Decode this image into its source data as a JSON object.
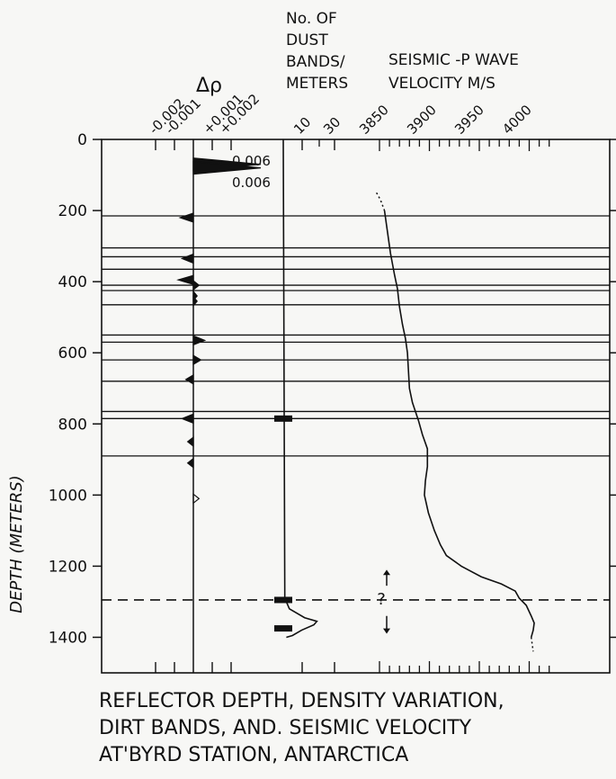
{
  "chart_data": {
    "type": "line",
    "title": [
      "REFLECTOR DEPTH, DENSITY VARIATION,",
      "DIRT BANDS, AND. SEISMIC VELOCITY",
      "AT'BYRD STATION, ANTARCTICA"
    ],
    "ylabel": "DEPTH (METERS)",
    "y_ticks": [
      "0",
      "200",
      "400",
      "600",
      "800",
      "1000",
      "1200",
      "1400"
    ],
    "ylim": [
      0,
      1500
    ],
    "panels": {
      "density": {
        "label": "Δρ",
        "ticks": [
          "-0.002",
          "-0.001",
          "+0.001",
          "+0.002"
        ],
        "annotations": [
          "0.006",
          "0.006"
        ],
        "spikes": [
          {
            "depth": 70,
            "value": 0.006
          },
          {
            "depth": 80,
            "value": 0.006
          },
          {
            "depth": 220,
            "value": -0.0007
          },
          {
            "depth": 335,
            "value": -0.0006
          },
          {
            "depth": 395,
            "value": -0.0008
          },
          {
            "depth": 410,
            "value": 0.0003
          },
          {
            "depth": 440,
            "value": 0.0002
          },
          {
            "depth": 455,
            "value": 0.0002
          },
          {
            "depth": 565,
            "value": 0.0006
          },
          {
            "depth": 620,
            "value": 0.0004
          },
          {
            "depth": 675,
            "value": -0.0004
          },
          {
            "depth": 785,
            "value": -0.0006
          },
          {
            "depth": 850,
            "value": -0.0003
          },
          {
            "depth": 910,
            "value": -0.0003
          },
          {
            "depth": 1010,
            "value": 0.0003
          }
        ]
      },
      "dust": {
        "label": [
          "No. OF",
          "DUST",
          "BANDS/",
          "METERS"
        ],
        "ticks": [
          "10",
          "30"
        ],
        "bands": [
          {
            "depth": 785,
            "value": 4
          },
          {
            "depth": 1295,
            "value": 4
          },
          {
            "depth": 1375,
            "value": 4
          }
        ],
        "profile": [
          [
            0,
            0
          ],
          [
            1290,
            1
          ],
          [
            1320,
            4
          ],
          [
            1345,
            14
          ],
          [
            1355,
            22
          ],
          [
            1365,
            20
          ],
          [
            1380,
            12
          ],
          [
            1395,
            6
          ],
          [
            1400,
            2
          ]
        ]
      },
      "seismic": {
        "label": [
          "SEISMIC -P WAVE",
          "VELOCITY M/S"
        ],
        "ticks": [
          "3850",
          "3900",
          "3950",
          "4000"
        ],
        "question_mark": "?",
        "velocity": [
          [
            150,
            3847
          ],
          [
            170,
            3851
          ],
          [
            200,
            3855
          ],
          [
            260,
            3858
          ],
          [
            320,
            3861
          ],
          [
            380,
            3865
          ],
          [
            420,
            3868
          ],
          [
            470,
            3870
          ],
          [
            520,
            3873
          ],
          [
            560,
            3876
          ],
          [
            600,
            3878
          ],
          [
            650,
            3879
          ],
          [
            700,
            3880
          ],
          [
            740,
            3883
          ],
          [
            790,
            3889
          ],
          [
            830,
            3893
          ],
          [
            870,
            3898
          ],
          [
            920,
            3898
          ],
          [
            960,
            3896
          ],
          [
            1000,
            3895
          ],
          [
            1050,
            3899
          ],
          [
            1100,
            3905
          ],
          [
            1140,
            3911
          ],
          [
            1170,
            3917
          ],
          [
            1200,
            3932
          ],
          [
            1230,
            3952
          ],
          [
            1250,
            3972
          ],
          [
            1270,
            3986
          ],
          [
            1290,
            3990
          ],
          [
            1310,
            3997
          ],
          [
            1340,
            4002
          ],
          [
            1360,
            4005
          ],
          [
            1380,
            4004
          ],
          [
            1400,
            4002
          ],
          [
            1420,
            4003
          ],
          [
            1440,
            4004
          ]
        ]
      }
    },
    "reflector_depths": [
      215,
      305,
      330,
      365,
      410,
      425,
      465,
      550,
      570,
      620,
      680,
      765,
      785,
      890
    ],
    "dashed_depth": 1295
  }
}
